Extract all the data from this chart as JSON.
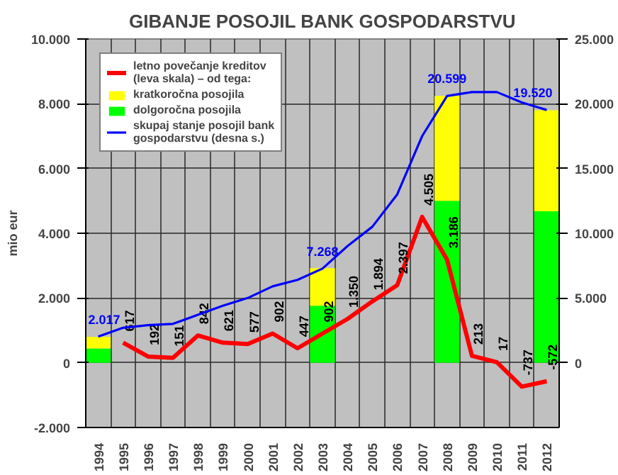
{
  "chart_data": {
    "type": "bar",
    "title": "GIBANJE POSOJIL BANK GOSPODARSTVU",
    "ylabel": "mio eur",
    "categories": [
      "1994",
      "1995",
      "1996",
      "1997",
      "1998",
      "1999",
      "2000",
      "2001",
      "2002",
      "2003",
      "2004",
      "2005",
      "2006",
      "2007",
      "2008",
      "2009",
      "2010",
      "2011",
      "2012"
    ],
    "stacked": true,
    "series": [
      {
        "name": "dolgoročna posojila",
        "axis": "y2",
        "color": "#00ff00",
        "values": [
          1100,
          null,
          null,
          null,
          null,
          null,
          null,
          null,
          null,
          4400,
          null,
          null,
          null,
          null,
          12500,
          null,
          null,
          null,
          11700
        ]
      },
      {
        "name": "kratkoročna posojila",
        "axis": "y2",
        "color": "#ffff00",
        "values": [
          900,
          null,
          null,
          null,
          null,
          null,
          null,
          null,
          null,
          2900,
          null,
          null,
          null,
          null,
          8100,
          null,
          null,
          null,
          7800
        ]
      },
      {
        "name": "letno povečanje kreditov (leva skala) – od tega:",
        "type": "line",
        "color": "#ff0000",
        "values": [
          null,
          617,
          192,
          151,
          842,
          621,
          577,
          902,
          447,
          902,
          1350,
          1894,
          2397,
          4505,
          3186,
          213,
          17,
          -737,
          -572
        ],
        "value_labels": [
          null,
          "617",
          "192",
          "151",
          "842",
          "621",
          "577",
          "902",
          "447",
          "902",
          "1.350",
          "1.894",
          "2.397",
          "4.505",
          "3.186",
          "213",
          "17",
          "-737",
          "-572"
        ]
      },
      {
        "name": "skupaj stanje posojil bank gospodarstvu (desna s.)",
        "type": "line",
        "axis": "y2",
        "color": "#0000ff",
        "values": [
          2017,
          2700,
          2900,
          3000,
          3700,
          4400,
          5000,
          5900,
          6400,
          7268,
          9000,
          10500,
          13000,
          17500,
          20599,
          20900,
          20900,
          20100,
          19520
        ],
        "value_labels": [
          "2.017",
          null,
          null,
          null,
          null,
          null,
          null,
          null,
          null,
          "7.268",
          null,
          null,
          null,
          null,
          "20.599",
          null,
          null,
          null,
          "19.520"
        ]
      }
    ],
    "ylim": [
      -2000,
      10000
    ],
    "yticks": [
      {
        "value": -2000,
        "label": "-2.000"
      },
      0,
      {
        "value": 2000,
        "label": "2.000"
      },
      {
        "value": 4000,
        "label": "4.000"
      },
      {
        "value": 6000,
        "label": "6.000"
      },
      {
        "value": 8000,
        "label": "8.000"
      },
      {
        "value": 10000,
        "label": "10.000"
      }
    ],
    "y2lim": [
      -5000,
      25000
    ],
    "y2ticks": [
      0,
      {
        "value": 5000,
        "label": "5.000"
      },
      {
        "value": 10000,
        "label": "10.000"
      },
      {
        "value": 15000,
        "label": "15.000"
      },
      {
        "value": 20000,
        "label": "20.000"
      },
      {
        "value": 25000,
        "label": "25.000"
      }
    ],
    "grid": true,
    "legend": "top left"
  }
}
